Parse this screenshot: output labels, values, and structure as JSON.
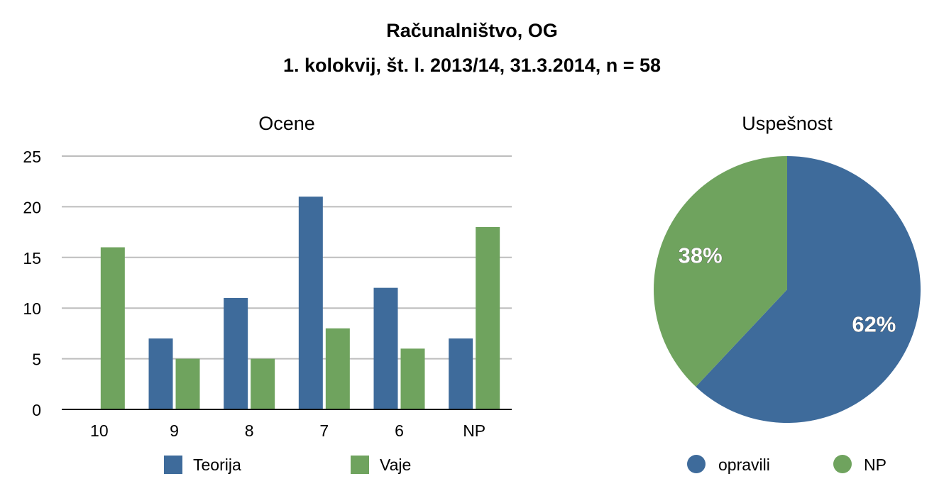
{
  "title_line1": "Računalništvo, OG",
  "title_line2": "1. kolokvij, št. l. 2013/14, 31.3.2014, n = 58",
  "colors": {
    "teorija": "#3e6b9b",
    "vaje": "#6fa35e",
    "grid": "#bdbdbd",
    "axis": "#111111"
  },
  "chart_data": [
    {
      "type": "bar",
      "title": "Ocene",
      "categories": [
        "10",
        "9",
        "8",
        "7",
        "6",
        "NP"
      ],
      "series": [
        {
          "name": "Teorija",
          "values": [
            0,
            7,
            11,
            21,
            12,
            7
          ]
        },
        {
          "name": "Vaje",
          "values": [
            16,
            5,
            5,
            8,
            6,
            18
          ]
        }
      ],
      "yticks": [
        0,
        5,
        10,
        15,
        20,
        25
      ],
      "ylim": [
        0,
        25
      ],
      "grid": true,
      "legend": "bottom"
    },
    {
      "type": "pie",
      "title": "Uspešnost",
      "labels": [
        "opravili",
        "NP"
      ],
      "values": [
        62,
        38
      ],
      "data_labels": [
        "62%",
        "38%"
      ],
      "legend": "bottom"
    }
  ]
}
